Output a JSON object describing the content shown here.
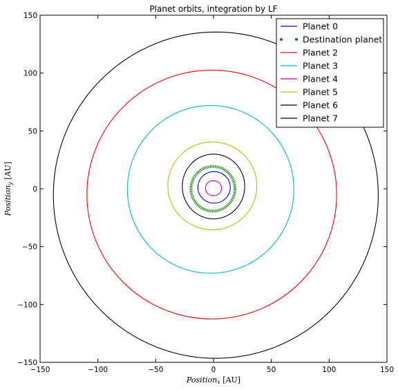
{
  "chart_data": {
    "type": "line",
    "title": "Planet orbits, integration by LF",
    "xlabel": "Position_x [AU]",
    "ylabel": "Position_y [AU]",
    "xlim": [
      -150,
      150
    ],
    "ylim": [
      -150,
      150
    ],
    "xticks": [
      "−150",
      "−100",
      "−50",
      "0",
      "50",
      "100",
      "150"
    ],
    "yticks": [
      "150",
      "100",
      "50",
      "0",
      "−50",
      "−100",
      "−150"
    ],
    "xtick_values": [
      -150,
      -100,
      -50,
      0,
      50,
      100,
      150
    ],
    "ytick_values": [
      150,
      100,
      50,
      0,
      -50,
      -100,
      -150
    ],
    "grid": false,
    "legend_position": "top-right",
    "series": [
      {
        "name": "Planet 0",
        "color": "#0000ff",
        "style": "solid",
        "center": [
          0.5,
          1.2
        ],
        "radius_x": 14.0,
        "radius_y": 13.6
      },
      {
        "name": "Destination planet",
        "color": "#008000",
        "style": "dotted",
        "center": [
          -0.5,
          0.0
        ],
        "radius_x": 19.0,
        "radius_y": 19.3
      },
      {
        "name": "Planet 2",
        "color": "#ff0000",
        "style": "solid",
        "center": [
          -1.5,
          -5.0
        ],
        "radius_x": 108.0,
        "radius_y": 107.5
      },
      {
        "name": "Planet 3",
        "color": "#00bfbf",
        "style": "solid",
        "center": [
          -2.5,
          -0.5
        ],
        "radius_x": 72.0,
        "radius_y": 72.5
      },
      {
        "name": "Planet 4",
        "color": "#bf00bf",
        "style": "solid",
        "center": [
          0.0,
          0.5
        ],
        "radius_x": 7.0,
        "radius_y": 6.5
      },
      {
        "name": "Planet 5",
        "color": "#bfbf00",
        "style": "solid",
        "center": [
          -1.0,
          2.5
        ],
        "radius_x": 38.5,
        "radius_y": 38.0
      },
      {
        "name": "Planet 6",
        "color": "#000000",
        "style": "solid",
        "center": [
          0.0,
          2.0
        ],
        "radius_x": 27.0,
        "radius_y": 28.0
      },
      {
        "name": "Planet 7",
        "color": "#000000",
        "style": "solid",
        "center": [
          2.0,
          -5.5
        ],
        "radius_x": 140.5,
        "radius_y": 141.0
      }
    ]
  }
}
